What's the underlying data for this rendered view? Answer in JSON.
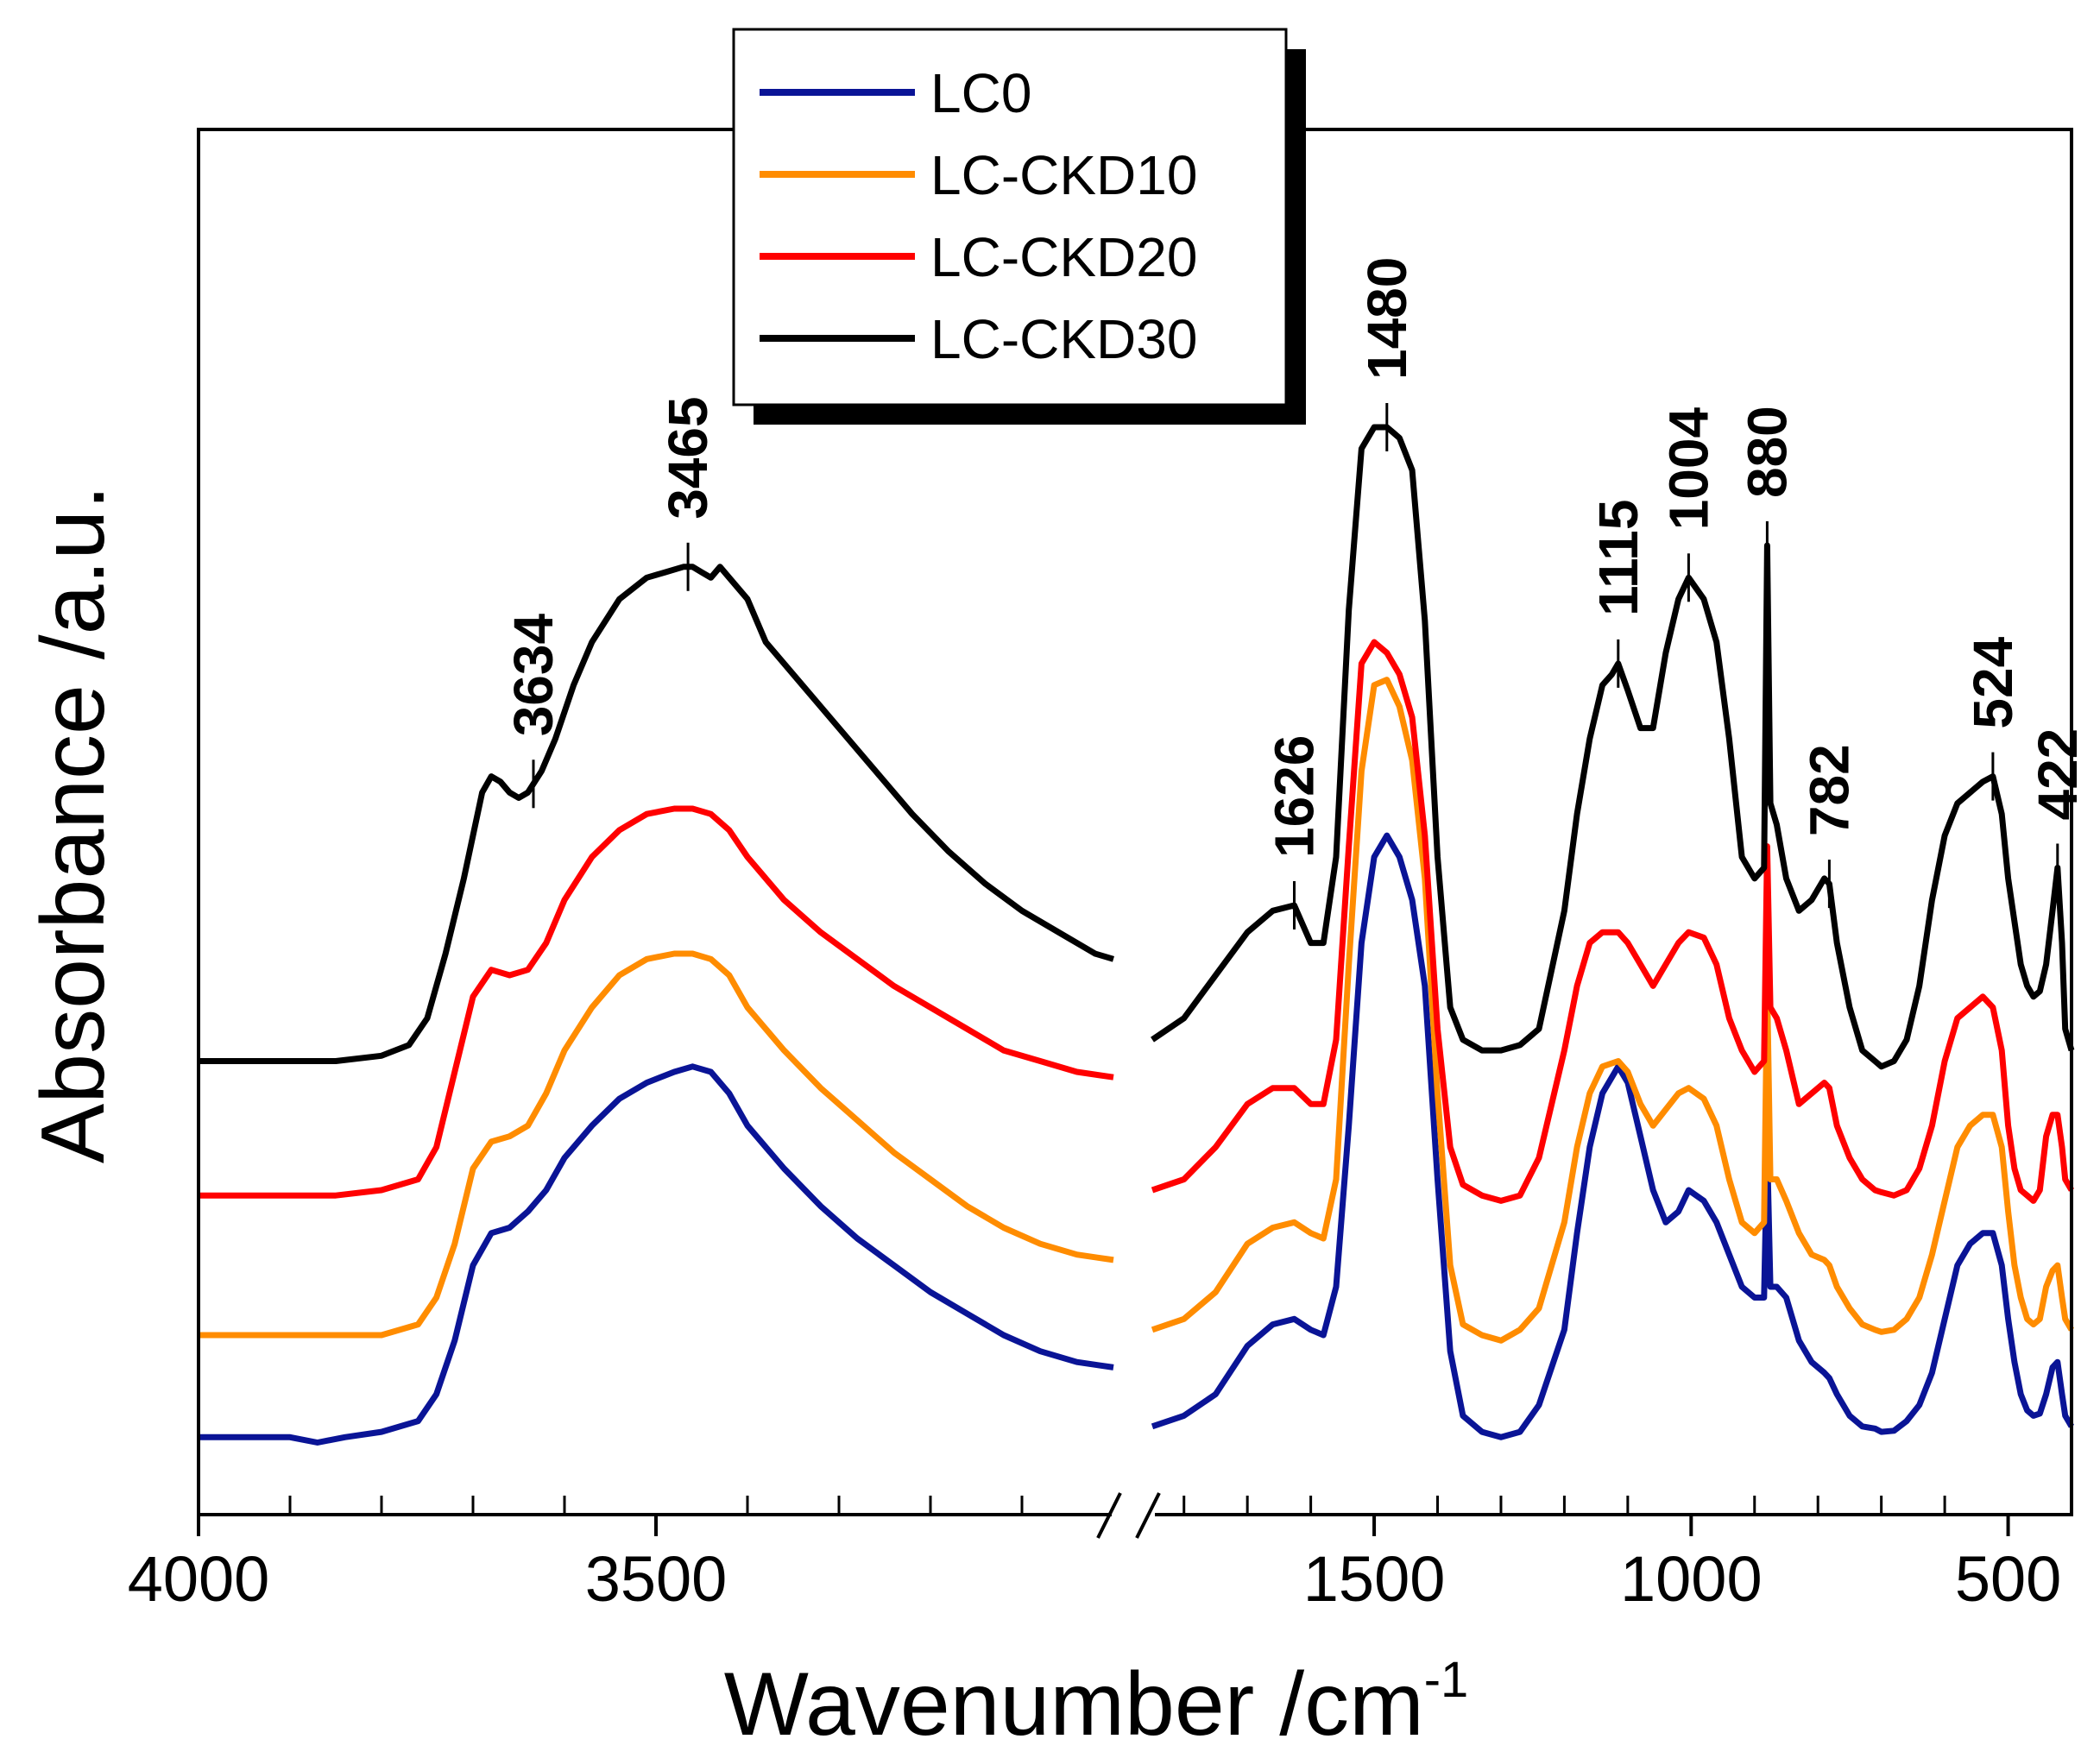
{
  "chart_data": {
    "type": "line",
    "title": "",
    "xlabel": "Wavenumber /cm",
    "xlabel_superscript": "-1",
    "ylabel": "Absorbance /a.u.",
    "x_axis_break": true,
    "left_panel": {
      "xlim": [
        4000,
        3000
      ],
      "ticks": [
        4000,
        3500
      ],
      "tick_labels": [
        "4000",
        "3500"
      ]
    },
    "right_panel": {
      "xlim": [
        1850,
        400
      ],
      "ticks": [
        1500,
        1000,
        500
      ],
      "tick_labels": [
        "1500",
        "1000",
        "500"
      ]
    },
    "y_ticks_visible": false,
    "legend": {
      "location": "top-center",
      "entries": [
        "LC0",
        "LC-CKD10",
        "LC-CKD20",
        "LC-CKD30"
      ]
    },
    "series": [
      {
        "name": "LC0",
        "color": "#0a1496",
        "left_x": [
          4000,
          3950,
          3900,
          3870,
          3840,
          3800,
          3760,
          3740,
          3720,
          3700,
          3680,
          3660,
          3640,
          3620,
          3600,
          3570,
          3540,
          3510,
          3480,
          3460,
          3440,
          3420,
          3400,
          3360,
          3320,
          3280,
          3240,
          3200,
          3160,
          3120,
          3080,
          3040,
          3000
        ],
        "left_y": [
          0.06,
          0.06,
          0.06,
          0.055,
          0.06,
          0.065,
          0.075,
          0.1,
          0.15,
          0.22,
          0.25,
          0.255,
          0.27,
          0.29,
          0.32,
          0.35,
          0.375,
          0.39,
          0.4,
          0.405,
          0.4,
          0.38,
          0.35,
          0.31,
          0.275,
          0.245,
          0.22,
          0.195,
          0.175,
          0.155,
          0.14,
          0.13,
          0.125
        ],
        "right_x": [
          1850,
          1800,
          1750,
          1700,
          1660,
          1626,
          1600,
          1580,
          1560,
          1540,
          1520,
          1500,
          1480,
          1460,
          1440,
          1420,
          1400,
          1380,
          1360,
          1330,
          1300,
          1270,
          1240,
          1200,
          1180,
          1160,
          1140,
          1115,
          1100,
          1080,
          1060,
          1040,
          1020,
          1004,
          980,
          960,
          940,
          920,
          900,
          885,
          880,
          875,
          865,
          850,
          830,
          810,
          790,
          782,
          770,
          750,
          730,
          710,
          700,
          680,
          660,
          640,
          620,
          600,
          580,
          560,
          540,
          524,
          510,
          500,
          490,
          480,
          470,
          460,
          450,
          440,
          430,
          422,
          415,
          410,
          400
        ],
        "right_y": [
          0.07,
          0.08,
          0.1,
          0.145,
          0.165,
          0.17,
          0.16,
          0.155,
          0.2,
          0.35,
          0.52,
          0.6,
          0.62,
          0.6,
          0.56,
          0.48,
          0.3,
          0.14,
          0.08,
          0.065,
          0.06,
          0.065,
          0.09,
          0.16,
          0.25,
          0.33,
          0.38,
          0.405,
          0.39,
          0.34,
          0.29,
          0.26,
          0.27,
          0.29,
          0.28,
          0.26,
          0.23,
          0.2,
          0.19,
          0.19,
          0.33,
          0.2,
          0.2,
          0.19,
          0.15,
          0.13,
          0.12,
          0.115,
          0.1,
          0.08,
          0.07,
          0.068,
          0.065,
          0.066,
          0.075,
          0.09,
          0.12,
          0.17,
          0.22,
          0.24,
          0.25,
          0.25,
          0.22,
          0.17,
          0.13,
          0.1,
          0.085,
          0.08,
          0.082,
          0.1,
          0.125,
          0.13,
          0.1,
          0.08,
          0.07
        ]
      },
      {
        "name": "LC-CKD10",
        "color": "#ff8c00",
        "left_x": [
          4000,
          3950,
          3900,
          3850,
          3800,
          3760,
          3740,
          3720,
          3700,
          3680,
          3660,
          3640,
          3620,
          3600,
          3570,
          3540,
          3510,
          3480,
          3460,
          3440,
          3420,
          3400,
          3360,
          3320,
          3280,
          3240,
          3200,
          3160,
          3120,
          3080,
          3040,
          3000
        ],
        "left_y": [
          0.155,
          0.155,
          0.155,
          0.155,
          0.155,
          0.165,
          0.19,
          0.24,
          0.31,
          0.335,
          0.34,
          0.35,
          0.38,
          0.42,
          0.46,
          0.49,
          0.505,
          0.51,
          0.51,
          0.505,
          0.49,
          0.46,
          0.42,
          0.385,
          0.355,
          0.325,
          0.3,
          0.275,
          0.255,
          0.24,
          0.23,
          0.225
        ],
        "right_x": [
          1850,
          1800,
          1750,
          1700,
          1660,
          1626,
          1600,
          1580,
          1560,
          1540,
          1520,
          1500,
          1480,
          1460,
          1440,
          1420,
          1400,
          1380,
          1360,
          1330,
          1300,
          1270,
          1240,
          1200,
          1180,
          1160,
          1140,
          1115,
          1100,
          1080,
          1060,
          1040,
          1020,
          1004,
          980,
          960,
          940,
          920,
          900,
          885,
          880,
          875,
          865,
          850,
          830,
          810,
          790,
          782,
          770,
          750,
          730,
          710,
          700,
          680,
          660,
          640,
          620,
          600,
          580,
          560,
          540,
          524,
          510,
          500,
          490,
          480,
          470,
          460,
          450,
          440,
          430,
          422,
          415,
          410,
          400
        ],
        "right_y": [
          0.16,
          0.17,
          0.195,
          0.24,
          0.255,
          0.26,
          0.25,
          0.245,
          0.3,
          0.5,
          0.68,
          0.76,
          0.765,
          0.74,
          0.69,
          0.58,
          0.38,
          0.22,
          0.165,
          0.155,
          0.15,
          0.16,
          0.18,
          0.26,
          0.33,
          0.38,
          0.405,
          0.41,
          0.4,
          0.37,
          0.35,
          0.365,
          0.38,
          0.385,
          0.375,
          0.35,
          0.3,
          0.26,
          0.25,
          0.26,
          0.48,
          0.3,
          0.3,
          0.28,
          0.25,
          0.23,
          0.225,
          0.22,
          0.2,
          0.18,
          0.165,
          0.16,
          0.158,
          0.16,
          0.17,
          0.19,
          0.23,
          0.28,
          0.33,
          0.35,
          0.36,
          0.36,
          0.33,
          0.27,
          0.22,
          0.19,
          0.17,
          0.165,
          0.17,
          0.2,
          0.215,
          0.22,
          0.19,
          0.17,
          0.16
        ]
      },
      {
        "name": "LC-CKD20",
        "color": "#ff0000",
        "left_x": [
          4000,
          3950,
          3900,
          3850,
          3800,
          3760,
          3740,
          3720,
          3700,
          3680,
          3660,
          3640,
          3620,
          3600,
          3570,
          3540,
          3510,
          3480,
          3460,
          3440,
          3420,
          3400,
          3360,
          3320,
          3280,
          3240,
          3200,
          3160,
          3120,
          3080,
          3040,
          3000
        ],
        "left_y": [
          0.285,
          0.285,
          0.285,
          0.285,
          0.29,
          0.3,
          0.33,
          0.4,
          0.47,
          0.495,
          0.49,
          0.495,
          0.52,
          0.56,
          0.6,
          0.625,
          0.64,
          0.645,
          0.645,
          0.64,
          0.625,
          0.6,
          0.56,
          0.53,
          0.505,
          0.48,
          0.46,
          0.44,
          0.42,
          0.41,
          0.4,
          0.395
        ],
        "right_x": [
          1850,
          1800,
          1750,
          1700,
          1660,
          1626,
          1600,
          1580,
          1560,
          1540,
          1520,
          1500,
          1480,
          1460,
          1440,
          1420,
          1400,
          1380,
          1360,
          1330,
          1300,
          1270,
          1240,
          1200,
          1180,
          1160,
          1140,
          1115,
          1100,
          1080,
          1060,
          1040,
          1020,
          1004,
          980,
          960,
          940,
          920,
          900,
          885,
          880,
          875,
          865,
          850,
          830,
          810,
          790,
          782,
          770,
          750,
          730,
          710,
          700,
          680,
          660,
          640,
          620,
          600,
          580,
          560,
          540,
          524,
          510,
          500,
          490,
          480,
          470,
          460,
          450,
          440,
          430,
          422,
          415,
          410,
          400
        ],
        "right_y": [
          0.29,
          0.3,
          0.33,
          0.37,
          0.385,
          0.385,
          0.37,
          0.37,
          0.43,
          0.61,
          0.78,
          0.8,
          0.79,
          0.77,
          0.73,
          0.62,
          0.44,
          0.33,
          0.295,
          0.285,
          0.28,
          0.285,
          0.32,
          0.42,
          0.48,
          0.52,
          0.53,
          0.53,
          0.52,
          0.5,
          0.48,
          0.5,
          0.52,
          0.53,
          0.525,
          0.5,
          0.45,
          0.42,
          0.4,
          0.41,
          0.61,
          0.46,
          0.45,
          0.42,
          0.37,
          0.38,
          0.39,
          0.385,
          0.35,
          0.32,
          0.3,
          0.29,
          0.288,
          0.285,
          0.29,
          0.31,
          0.35,
          0.41,
          0.45,
          0.46,
          0.47,
          0.46,
          0.42,
          0.35,
          0.31,
          0.29,
          0.285,
          0.28,
          0.29,
          0.34,
          0.36,
          0.36,
          0.33,
          0.3,
          0.29
        ]
      },
      {
        "name": "LC-CKD30",
        "color": "#000000",
        "left_x": [
          4000,
          3950,
          3900,
          3850,
          3800,
          3770,
          3750,
          3730,
          3710,
          3690,
          3680,
          3670,
          3660,
          3650,
          3640,
          3625,
          3610,
          3590,
          3570,
          3540,
          3510,
          3490,
          3470,
          3460,
          3450,
          3440,
          3430,
          3420,
          3400,
          3380,
          3340,
          3300,
          3260,
          3220,
          3180,
          3140,
          3100,
          3060,
          3020,
          3000
        ],
        "left_y": [
          0.41,
          0.41,
          0.41,
          0.41,
          0.415,
          0.425,
          0.45,
          0.51,
          0.58,
          0.66,
          0.675,
          0.67,
          0.66,
          0.655,
          0.66,
          0.68,
          0.71,
          0.76,
          0.8,
          0.84,
          0.86,
          0.865,
          0.87,
          0.87,
          0.865,
          0.86,
          0.87,
          0.86,
          0.84,
          0.8,
          0.76,
          0.72,
          0.68,
          0.64,
          0.605,
          0.575,
          0.55,
          0.53,
          0.51,
          0.505
        ],
        "right_x": [
          1850,
          1800,
          1750,
          1700,
          1660,
          1626,
          1600,
          1580,
          1560,
          1540,
          1520,
          1500,
          1490,
          1480,
          1470,
          1460,
          1440,
          1420,
          1400,
          1380,
          1360,
          1330,
          1300,
          1270,
          1240,
          1200,
          1180,
          1160,
          1140,
          1125,
          1115,
          1100,
          1080,
          1060,
          1040,
          1020,
          1004,
          980,
          960,
          940,
          920,
          900,
          885,
          880,
          875,
          865,
          850,
          830,
          810,
          790,
          782,
          770,
          750,
          730,
          710,
          700,
          680,
          660,
          640,
          620,
          600,
          580,
          560,
          540,
          524,
          510,
          500,
          490,
          480,
          470,
          460,
          450,
          440,
          430,
          422,
          415,
          410,
          400
        ],
        "right_y": [
          0.43,
          0.45,
          0.49,
          0.53,
          0.55,
          0.555,
          0.52,
          0.52,
          0.6,
          0.83,
          0.98,
          1.0,
          1.0,
          1.0,
          0.995,
          0.99,
          0.96,
          0.82,
          0.6,
          0.46,
          0.43,
          0.42,
          0.42,
          0.425,
          0.44,
          0.55,
          0.64,
          0.71,
          0.76,
          0.77,
          0.78,
          0.755,
          0.72,
          0.72,
          0.79,
          0.84,
          0.86,
          0.84,
          0.8,
          0.71,
          0.6,
          0.58,
          0.59,
          0.89,
          0.65,
          0.63,
          0.58,
          0.55,
          0.56,
          0.58,
          0.575,
          0.52,
          0.46,
          0.42,
          0.41,
          0.405,
          0.41,
          0.43,
          0.48,
          0.56,
          0.62,
          0.65,
          0.66,
          0.67,
          0.675,
          0.64,
          0.58,
          0.54,
          0.5,
          0.48,
          0.47,
          0.475,
          0.5,
          0.55,
          0.59,
          0.52,
          0.44,
          0.42
        ]
      }
    ],
    "peak_annotations": [
      {
        "label": "3634",
        "x": 3634,
        "series": "LC-CKD30"
      },
      {
        "label": "3465",
        "x": 3465,
        "series": "LC-CKD30"
      },
      {
        "label": "1626",
        "x": 1626,
        "series": "LC-CKD30"
      },
      {
        "label": "1480",
        "x": 1480,
        "series": "LC-CKD30"
      },
      {
        "label": "1115",
        "x": 1115,
        "series": "LC-CKD30"
      },
      {
        "label": "1004",
        "x": 1004,
        "series": "LC-CKD30"
      },
      {
        "label": "880",
        "x": 880,
        "series": "LC-CKD30"
      },
      {
        "label": "782",
        "x": 782,
        "series": "LC-CKD30"
      },
      {
        "label": "524",
        "x": 524,
        "series": "LC-CKD30"
      },
      {
        "label": "422",
        "x": 422,
        "series": "LC-CKD30"
      }
    ]
  }
}
